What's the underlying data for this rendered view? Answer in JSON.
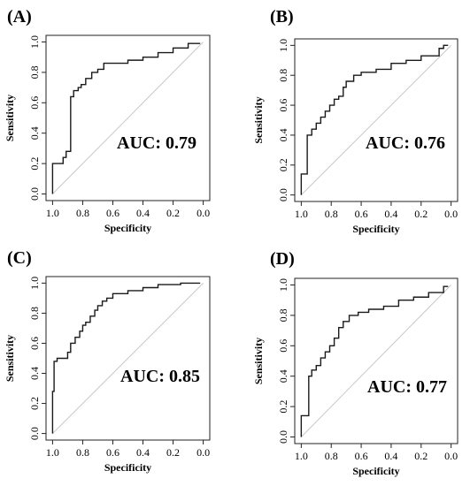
{
  "chart_data": [
    {
      "type": "line",
      "panel_label": "(A)",
      "annotation": "AUC: 0.79",
      "xlabel": "Specificity",
      "ylabel": "Sensitivity",
      "x_reversed": true,
      "xlim": [
        1.0,
        0.0
      ],
      "ylim": [
        0.0,
        1.0
      ],
      "xticks": [
        "1.0",
        "0.8",
        "0.6",
        "0.4",
        "0.2",
        "0.0"
      ],
      "yticks": [
        "0.0",
        "0.2",
        "0.4",
        "0.6",
        "0.8",
        "1.0"
      ],
      "diagonal": true,
      "series": [
        {
          "x": [
            1.0,
            1.0,
            0.98,
            0.95,
            0.93,
            0.93,
            0.91,
            0.91,
            0.88,
            0.88,
            0.86,
            0.86,
            0.83,
            0.83,
            0.81,
            0.81,
            0.78,
            0.78,
            0.74,
            0.74,
            0.7,
            0.7,
            0.66,
            0.66,
            0.62,
            0.62,
            0.5,
            0.5,
            0.4,
            0.4,
            0.3,
            0.3,
            0.2,
            0.2,
            0.1,
            0.1,
            0.02
          ],
          "y": [
            0.0,
            0.2,
            0.2,
            0.2,
            0.2,
            0.24,
            0.24,
            0.28,
            0.28,
            0.64,
            0.64,
            0.68,
            0.68,
            0.7,
            0.7,
            0.72,
            0.72,
            0.76,
            0.76,
            0.8,
            0.8,
            0.82,
            0.82,
            0.86,
            0.86,
            0.86,
            0.86,
            0.88,
            0.88,
            0.9,
            0.9,
            0.93,
            0.93,
            0.96,
            0.96,
            0.99,
            0.99
          ]
        }
      ]
    },
    {
      "type": "line",
      "panel_label": "(B)",
      "annotation": "AUC: 0.76",
      "xlabel": "Specificity",
      "ylabel": "Sensitivity",
      "x_reversed": true,
      "xlim": [
        1.0,
        0.0
      ],
      "ylim": [
        0.0,
        1.0
      ],
      "xticks": [
        "1.0",
        "0.8",
        "0.6",
        "0.4",
        "0.2",
        "0.0"
      ],
      "yticks": [
        "0.0",
        "0.2",
        "0.4",
        "0.6",
        "0.8",
        "1.0"
      ],
      "diagonal": true,
      "series": [
        {
          "x": [
            1.0,
            1.0,
            0.96,
            0.96,
            0.93,
            0.93,
            0.9,
            0.9,
            0.87,
            0.87,
            0.84,
            0.84,
            0.81,
            0.81,
            0.78,
            0.78,
            0.75,
            0.75,
            0.72,
            0.72,
            0.7,
            0.7,
            0.65,
            0.65,
            0.6,
            0.6,
            0.5,
            0.5,
            0.4,
            0.4,
            0.3,
            0.3,
            0.2,
            0.2,
            0.08,
            0.08,
            0.05,
            0.05,
            0.02
          ],
          "y": [
            0.0,
            0.14,
            0.14,
            0.4,
            0.4,
            0.44,
            0.44,
            0.48,
            0.48,
            0.52,
            0.52,
            0.56,
            0.56,
            0.6,
            0.6,
            0.64,
            0.64,
            0.66,
            0.66,
            0.72,
            0.72,
            0.76,
            0.76,
            0.8,
            0.8,
            0.82,
            0.82,
            0.84,
            0.84,
            0.88,
            0.88,
            0.9,
            0.9,
            0.93,
            0.93,
            0.98,
            0.98,
            1.0,
            1.0
          ]
        }
      ]
    },
    {
      "type": "line",
      "panel_label": "(C)",
      "annotation": "AUC: 0.85",
      "xlabel": "Specificity",
      "ylabel": "Sensitivity",
      "x_reversed": true,
      "xlim": [
        1.0,
        0.0
      ],
      "ylim": [
        0.0,
        1.0
      ],
      "xticks": [
        "1.0",
        "0.8",
        "0.6",
        "0.4",
        "0.2",
        "0.0"
      ],
      "yticks": [
        "0.0",
        "0.2",
        "0.4",
        "0.6",
        "0.8",
        "1.0"
      ],
      "diagonal": true,
      "series": [
        {
          "x": [
            1.0,
            1.0,
            0.99,
            0.99,
            0.97,
            0.97,
            0.9,
            0.9,
            0.88,
            0.88,
            0.85,
            0.85,
            0.82,
            0.82,
            0.8,
            0.8,
            0.78,
            0.78,
            0.75,
            0.75,
            0.72,
            0.72,
            0.7,
            0.7,
            0.67,
            0.67,
            0.64,
            0.64,
            0.6,
            0.6,
            0.5,
            0.5,
            0.4,
            0.4,
            0.3,
            0.3,
            0.15,
            0.15,
            0.02
          ],
          "y": [
            0.0,
            0.28,
            0.28,
            0.48,
            0.48,
            0.5,
            0.5,
            0.54,
            0.54,
            0.6,
            0.6,
            0.64,
            0.64,
            0.68,
            0.68,
            0.72,
            0.72,
            0.74,
            0.74,
            0.78,
            0.78,
            0.82,
            0.82,
            0.85,
            0.85,
            0.88,
            0.88,
            0.9,
            0.9,
            0.93,
            0.93,
            0.95,
            0.95,
            0.97,
            0.97,
            0.99,
            0.99,
            1.0,
            1.0
          ]
        }
      ]
    },
    {
      "type": "line",
      "panel_label": "(D)",
      "annotation": "AUC: 0.77",
      "xlabel": "Specificity",
      "ylabel": "Sensitivity",
      "x_reversed": true,
      "xlim": [
        1.0,
        0.0
      ],
      "ylim": [
        0.0,
        1.0
      ],
      "xticks": [
        "1.0",
        "0.8",
        "0.6",
        "0.4",
        "0.2",
        "0.0"
      ],
      "yticks": [
        "0.0",
        "0.2",
        "0.4",
        "0.6",
        "0.8",
        "1.0"
      ],
      "diagonal": true,
      "series": [
        {
          "x": [
            1.0,
            1.0,
            0.95,
            0.95,
            0.93,
            0.93,
            0.9,
            0.9,
            0.87,
            0.87,
            0.84,
            0.84,
            0.81,
            0.81,
            0.78,
            0.78,
            0.75,
            0.75,
            0.72,
            0.72,
            0.68,
            0.68,
            0.62,
            0.62,
            0.55,
            0.55,
            0.45,
            0.45,
            0.35,
            0.35,
            0.25,
            0.25,
            0.15,
            0.15,
            0.05,
            0.05,
            0.02
          ],
          "y": [
            0.0,
            0.14,
            0.14,
            0.4,
            0.4,
            0.44,
            0.44,
            0.47,
            0.47,
            0.52,
            0.52,
            0.56,
            0.56,
            0.6,
            0.6,
            0.65,
            0.65,
            0.72,
            0.72,
            0.76,
            0.76,
            0.8,
            0.8,
            0.82,
            0.82,
            0.84,
            0.84,
            0.86,
            0.86,
            0.9,
            0.9,
            0.92,
            0.92,
            0.95,
            0.95,
            0.99,
            0.99
          ]
        }
      ]
    }
  ]
}
